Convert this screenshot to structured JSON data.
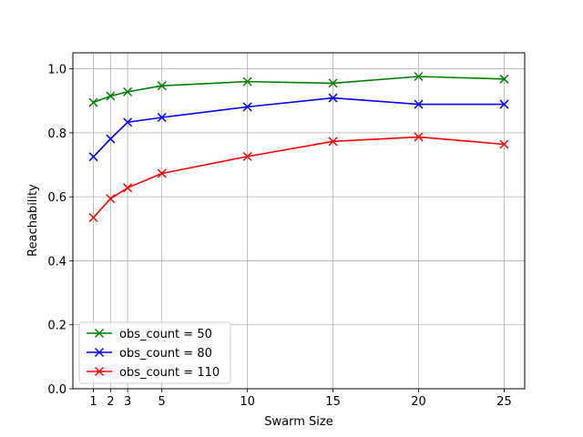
{
  "chart_data": {
    "type": "line",
    "xlabel": "Swarm Size",
    "ylabel": "Reachability",
    "x": [
      1,
      2,
      3,
      5,
      10,
      15,
      20,
      25
    ],
    "xticks": [
      "1",
      "2",
      "3",
      "5",
      "10",
      "15",
      "20",
      "25"
    ],
    "yticks": [
      "0.0",
      "0.2",
      "0.4",
      "0.6",
      "0.8",
      "1.0"
    ],
    "xlim": [
      -0.2,
      26.2
    ],
    "ylim": [
      0.0,
      1.05
    ],
    "grid": true,
    "legend_position": "lower-left",
    "marker": "x",
    "series": [
      {
        "name": "obs_count = 50",
        "color": "#008000",
        "values": [
          0.895,
          0.915,
          0.928,
          0.947,
          0.96,
          0.955,
          0.976,
          0.968
        ]
      },
      {
        "name": "obs_count = 80",
        "color": "#0000ff",
        "values": [
          0.725,
          0.781,
          0.833,
          0.848,
          0.881,
          0.909,
          0.889,
          0.889
        ]
      },
      {
        "name": "obs_count = 110",
        "color": "#ff0000",
        "values": [
          0.535,
          0.594,
          0.628,
          0.673,
          0.726,
          0.773,
          0.787,
          0.764
        ]
      }
    ]
  }
}
